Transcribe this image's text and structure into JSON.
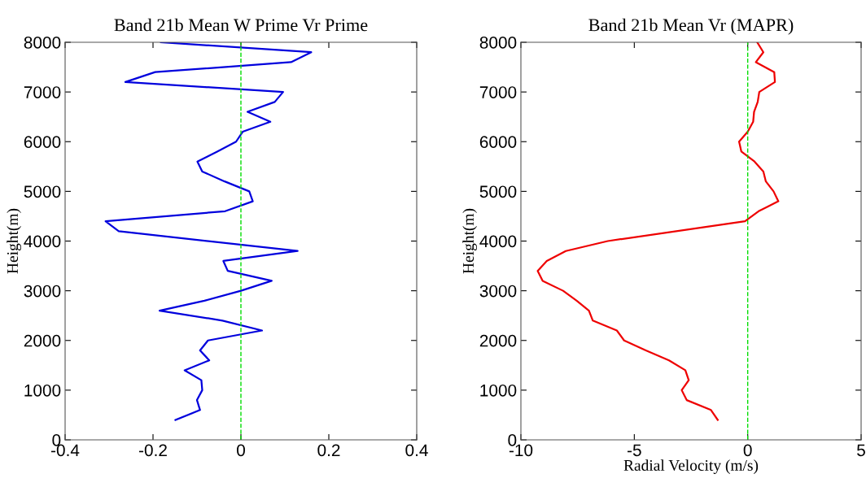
{
  "chart_data": [
    {
      "type": "line",
      "title": "Band 21b Mean W Prime Vr Prime",
      "ylabel": "Height(m)",
      "orientation": "horizontal",
      "grid": false,
      "legend": false,
      "line_style": "solid",
      "marker": "none",
      "series": [
        {
          "color": "#0000dd",
          "x": [
            400,
            600,
            800,
            1000,
            1200,
            1400,
            1600,
            1800,
            2000,
            2200,
            2400,
            2600,
            2800,
            3000,
            3200,
            3400,
            3600,
            3800,
            4200,
            4400,
            4600,
            4800,
            5000,
            5200,
            5400,
            5600,
            5800,
            6000,
            6200,
            6400,
            6600,
            6800,
            7000,
            7200,
            7400,
            7600,
            7800,
            8000
          ],
          "values": [
            -0.149,
            -0.093,
            -0.1,
            -0.088,
            -0.09,
            -0.128,
            -0.072,
            -0.093,
            -0.075,
            0.048,
            -0.042,
            -0.185,
            -0.083,
            0.0,
            0.07,
            -0.03,
            -0.04,
            0.129,
            -0.278,
            -0.308,
            -0.036,
            0.027,
            0.019,
            -0.037,
            -0.088,
            -0.099,
            -0.054,
            -0.011,
            0.004,
            0.067,
            0.015,
            0.077,
            0.096,
            -0.263,
            -0.195,
            0.114,
            0.16,
            -0.182
          ]
        }
      ],
      "xlim": [
        -0.4,
        0.4
      ],
      "xticks": [
        {
          "value": -0.4,
          "label": "-0.4"
        },
        {
          "value": -0.2,
          "label": "-0.2"
        },
        0,
        0.2,
        0.4
      ],
      "ylim": [
        0,
        8000
      ],
      "yticks": [
        0,
        1000,
        2000,
        3000,
        4000,
        5000,
        6000,
        7000,
        8000
      ],
      "ref_lines": [
        {
          "axis": "x",
          "value": 0,
          "color": "#00dd00",
          "line_style": "dashed"
        }
      ]
    },
    {
      "type": "line",
      "title": "Band 21b Mean Vr (MAPR)",
      "xlabel": "Radial Velocity (m/s)",
      "ylabel": "Height(m)",
      "orientation": "horizontal",
      "grid": false,
      "legend": false,
      "line_style": "solid",
      "marker": "none",
      "series": [
        {
          "color": "#ee0000",
          "x": [
            400,
            600,
            800,
            1000,
            1200,
            1400,
            1600,
            1800,
            2000,
            2200,
            2400,
            2600,
            2800,
            3000,
            3200,
            3400,
            3600,
            3800,
            4000,
            4400,
            4600,
            4800,
            5000,
            5200,
            5400,
            5600,
            5800,
            6000,
            6200,
            6400,
            6600,
            6800,
            7000,
            7200,
            7400,
            7600,
            7800,
            8000
          ],
          "values": [
            -1.32,
            -1.62,
            -2.69,
            -2.91,
            -2.6,
            -2.75,
            -3.47,
            -4.49,
            -5.45,
            -5.77,
            -6.83,
            -7.0,
            -7.54,
            -8.14,
            -9.04,
            -9.26,
            -8.86,
            -8.02,
            -6.17,
            -0.12,
            0.48,
            1.35,
            1.14,
            0.8,
            0.69,
            0.3,
            -0.28,
            -0.38,
            0.0,
            0.24,
            0.28,
            0.44,
            0.51,
            1.2,
            1.17,
            0.36,
            0.69,
            0.42
          ]
        }
      ],
      "xlim": [
        -10,
        5
      ],
      "xticks": [
        {
          "value": -10,
          "label": "-10"
        },
        {
          "value": -5,
          "label": "-5"
        },
        0,
        5
      ],
      "ylim": [
        0,
        8000
      ],
      "yticks": [
        0,
        1000,
        2000,
        3000,
        4000,
        5000,
        6000,
        7000,
        8000
      ],
      "ref_lines": [
        {
          "axis": "x",
          "value": 0,
          "color": "#00dd00",
          "line_style": "dashed"
        }
      ]
    }
  ]
}
